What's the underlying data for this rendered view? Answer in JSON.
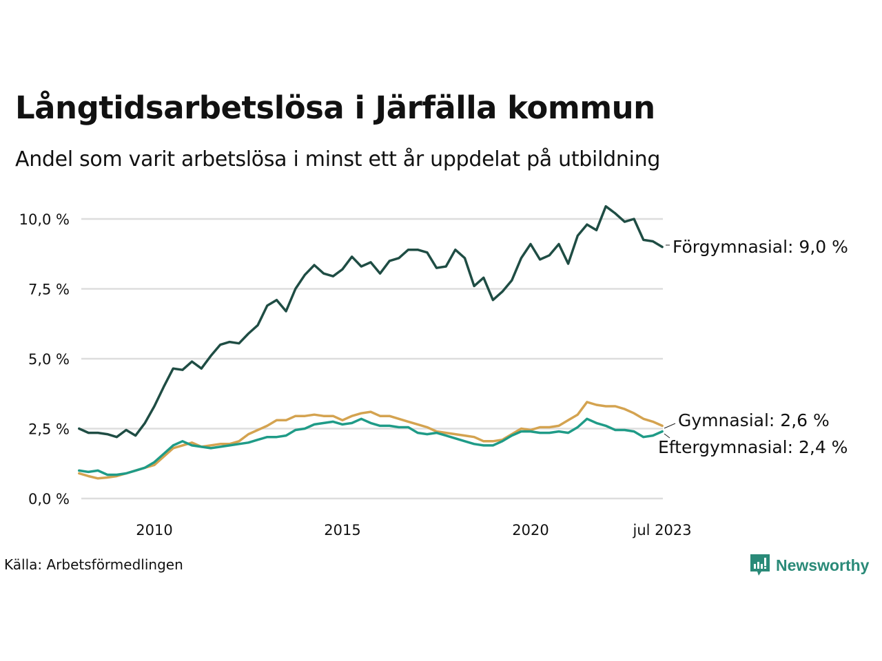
{
  "header": {
    "title": "Långtidsarbetslösa i Järfälla kommun",
    "subtitle": "Andel som varit arbetslösa i minst ett år uppdelat på utbildning"
  },
  "footer": {
    "source": "Källa: Arbetsförmedlingen",
    "brand": "Newsworthy",
    "brand_color": "#2a8a78"
  },
  "chart_data": {
    "type": "line",
    "title": "Långtidsarbetslösa i Järfälla kommun",
    "subtitle": "Andel som varit arbetslösa i minst ett år uppdelat på utbildning",
    "xlabel": "",
    "ylabel": "",
    "xlim": [
      2008.0,
      2023.5
    ],
    "ylim": [
      0,
      10.5
    ],
    "grid": true,
    "legend": "end-labels-right",
    "y_ticks": [
      {
        "value": 0,
        "label": "0,0 %"
      },
      {
        "value": 2.5,
        "label": "2,5 %"
      },
      {
        "value": 5,
        "label": "5,0 %"
      },
      {
        "value": 7.5,
        "label": "7,5 %"
      },
      {
        "value": 10,
        "label": "10,0 %"
      }
    ],
    "x_ticks": [
      {
        "value": 2010,
        "label": "2010"
      },
      {
        "value": 2015,
        "label": "2015"
      },
      {
        "value": 2020,
        "label": "2020"
      },
      {
        "value": 2023.5,
        "label": "jul 2023"
      }
    ],
    "x": [
      2008.0,
      2008.25,
      2008.5,
      2008.75,
      2009.0,
      2009.25,
      2009.5,
      2009.75,
      2010.0,
      2010.25,
      2010.5,
      2010.75,
      2011.0,
      2011.25,
      2011.5,
      2011.75,
      2012.0,
      2012.25,
      2012.5,
      2012.75,
      2013.0,
      2013.25,
      2013.5,
      2013.75,
      2014.0,
      2014.25,
      2014.5,
      2014.75,
      2015.0,
      2015.25,
      2015.5,
      2015.75,
      2016.0,
      2016.25,
      2016.5,
      2016.75,
      2017.0,
      2017.25,
      2017.5,
      2017.75,
      2018.0,
      2018.25,
      2018.5,
      2018.75,
      2019.0,
      2019.25,
      2019.5,
      2019.75,
      2020.0,
      2020.25,
      2020.5,
      2020.75,
      2021.0,
      2021.25,
      2021.5,
      2021.75,
      2022.0,
      2022.25,
      2022.5,
      2022.75,
      2023.0,
      2023.25,
      2023.5
    ],
    "series": [
      {
        "name": "Förgymnasial",
        "label": "Förgymnasial: 9,0 %",
        "color": "#1f4d44",
        "values": [
          2.5,
          2.35,
          2.35,
          2.3,
          2.2,
          2.45,
          2.25,
          2.7,
          3.3,
          4.0,
          4.65,
          4.6,
          4.9,
          4.65,
          5.1,
          5.5,
          5.6,
          5.55,
          5.9,
          6.2,
          6.9,
          7.1,
          6.7,
          7.5,
          8.0,
          8.35,
          8.05,
          7.95,
          8.2,
          8.65,
          8.3,
          8.45,
          8.05,
          8.5,
          8.6,
          8.9,
          8.9,
          8.8,
          8.25,
          8.3,
          8.9,
          8.6,
          7.6,
          7.9,
          7.1,
          7.4,
          7.8,
          8.6,
          9.1,
          8.55,
          8.7,
          9.1,
          8.4,
          9.4,
          9.8,
          9.6,
          10.45,
          10.2,
          9.9,
          10.0,
          9.25,
          9.2,
          9.0
        ]
      },
      {
        "name": "Gymnasial",
        "label": "Gymnasial: 2,6 %",
        "color": "#d4a350",
        "values": [
          0.9,
          0.8,
          0.72,
          0.75,
          0.8,
          0.9,
          1.0,
          1.1,
          1.2,
          1.5,
          1.8,
          1.9,
          2.0,
          1.85,
          1.9,
          1.95,
          1.95,
          2.05,
          2.3,
          2.45,
          2.6,
          2.8,
          2.8,
          2.95,
          2.95,
          3.0,
          2.95,
          2.95,
          2.8,
          2.95,
          3.05,
          3.1,
          2.95,
          2.95,
          2.85,
          2.75,
          2.65,
          2.55,
          2.4,
          2.35,
          2.3,
          2.25,
          2.2,
          2.05,
          2.05,
          2.1,
          2.3,
          2.5,
          2.45,
          2.55,
          2.55,
          2.6,
          2.8,
          3.0,
          3.45,
          3.35,
          3.3,
          3.3,
          3.2,
          3.05,
          2.85,
          2.75,
          2.6
        ]
      },
      {
        "name": "Eftergymnasial",
        "label": "Eftergymnasial: 2,4 %",
        "color": "#1f9b87",
        "values": [
          1.0,
          0.95,
          1.0,
          0.85,
          0.85,
          0.9,
          1.0,
          1.1,
          1.3,
          1.6,
          1.9,
          2.05,
          1.9,
          1.85,
          1.8,
          1.85,
          1.9,
          1.95,
          2.0,
          2.1,
          2.2,
          2.2,
          2.25,
          2.45,
          2.5,
          2.65,
          2.7,
          2.75,
          2.65,
          2.7,
          2.85,
          2.7,
          2.6,
          2.6,
          2.55,
          2.55,
          2.35,
          2.3,
          2.35,
          2.25,
          2.15,
          2.05,
          1.95,
          1.9,
          1.9,
          2.05,
          2.25,
          2.4,
          2.4,
          2.35,
          2.35,
          2.4,
          2.35,
          2.55,
          2.85,
          2.7,
          2.6,
          2.45,
          2.45,
          2.4,
          2.2,
          2.25,
          2.4
        ]
      }
    ]
  }
}
